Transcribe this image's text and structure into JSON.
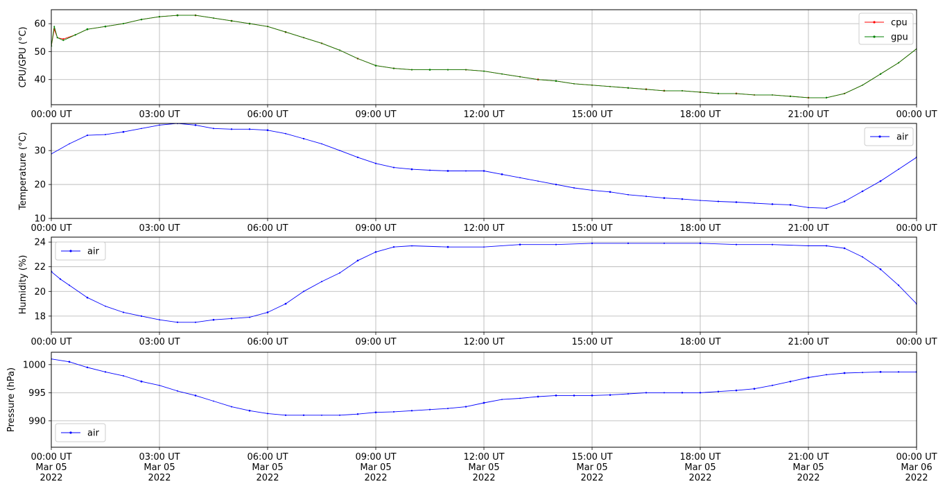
{
  "chart_data": [
    {
      "type": "line",
      "ylabel": "CPU/GPU (°C)",
      "xlim": [
        "2022-03-05T00:00Z",
        "2022-03-06T00:00Z"
      ],
      "ylim": [
        31,
        65
      ],
      "yticks": [
        40,
        50,
        60
      ],
      "xticks": [
        "00:00 UT",
        "03:00 UT",
        "06:00 UT",
        "09:00 UT",
        "12:00 UT",
        "15:00 UT",
        "18:00 UT",
        "21:00 UT",
        "00:00 UT"
      ],
      "grid": true,
      "legend": "top-right",
      "series": [
        {
          "name": "cpu",
          "color": "#ff0000",
          "x": [
            "00:00",
            "00:05",
            "00:10",
            "00:20",
            "00:40",
            "01:00",
            "01:30",
            "02:00",
            "02:30",
            "03:00",
            "03:30",
            "04:00",
            "04:30",
            "05:00",
            "05:30",
            "06:00",
            "06:30",
            "07:00",
            "07:30",
            "08:00",
            "08:30",
            "09:00",
            "09:30",
            "10:00",
            "10:30",
            "11:00",
            "11:30",
            "12:00",
            "12:30",
            "13:00",
            "13:30",
            "14:00",
            "14:30",
            "15:00",
            "15:30",
            "16:00",
            "16:30",
            "17:00",
            "17:30",
            "18:00",
            "18:30",
            "19:00",
            "19:30",
            "20:00",
            "20:30",
            "21:00",
            "21:30",
            "22:00",
            "22:30",
            "23:00",
            "23:30",
            "24:00"
          ],
          "y": [
            52,
            58,
            55,
            54.5,
            56,
            58,
            59,
            60,
            61.5,
            62.5,
            63,
            63,
            62,
            61,
            60,
            59,
            57,
            55,
            53,
            50.5,
            47.5,
            45,
            44,
            43.5,
            43.5,
            43.5,
            43.5,
            43,
            42,
            41,
            40,
            39.5,
            38.5,
            38,
            37.5,
            37,
            36.5,
            36,
            36,
            35.5,
            35,
            35,
            34.5,
            34.5,
            34,
            33.5,
            33.5,
            35,
            38,
            42,
            46,
            51
          ]
        },
        {
          "name": "gpu",
          "color": "#008000",
          "x": [
            "00:00",
            "00:05",
            "00:10",
            "00:20",
            "00:40",
            "01:00",
            "01:30",
            "02:00",
            "02:30",
            "03:00",
            "03:30",
            "04:00",
            "04:30",
            "05:00",
            "05:30",
            "06:00",
            "06:30",
            "07:00",
            "07:30",
            "08:00",
            "08:30",
            "09:00",
            "09:30",
            "10:00",
            "10:30",
            "11:00",
            "11:30",
            "12:00",
            "12:30",
            "13:00",
            "13:30",
            "14:00",
            "14:30",
            "15:00",
            "15:30",
            "16:00",
            "16:30",
            "17:00",
            "17:30",
            "18:00",
            "18:30",
            "19:00",
            "19:30",
            "20:00",
            "20:30",
            "21:00",
            "21:30",
            "22:00",
            "22:30",
            "23:00",
            "23:30",
            "24:00"
          ],
          "y": [
            52,
            59,
            55,
            54,
            56,
            58,
            59,
            60,
            61.5,
            62.5,
            63,
            63,
            62,
            61,
            60,
            59,
            57,
            55,
            53,
            50.5,
            47.5,
            45,
            44,
            43.5,
            43.5,
            43.5,
            43.5,
            43,
            42,
            41,
            40,
            39.5,
            38.5,
            38,
            37.5,
            37,
            36.5,
            36,
            36,
            35.5,
            35,
            35,
            34.5,
            34.5,
            34,
            33.5,
            33.5,
            35,
            38,
            42,
            46,
            51
          ]
        }
      ]
    },
    {
      "type": "line",
      "ylabel": "Temperature (°C)",
      "xlim": [
        "2022-03-05T00:00Z",
        "2022-03-06T00:00Z"
      ],
      "ylim": [
        10,
        38
      ],
      "yticks": [
        10,
        20,
        30
      ],
      "xticks": [
        "00:00 UT",
        "03:00 UT",
        "06:00 UT",
        "09:00 UT",
        "12:00 UT",
        "15:00 UT",
        "18:00 UT",
        "21:00 UT",
        "00:00 UT"
      ],
      "grid": true,
      "legend": "top-right",
      "series": [
        {
          "name": "air",
          "color": "#0000ff",
          "x": [
            "00:00",
            "00:30",
            "01:00",
            "01:30",
            "02:00",
            "02:30",
            "03:00",
            "03:30",
            "04:00",
            "04:30",
            "05:00",
            "05:30",
            "06:00",
            "06:30",
            "07:00",
            "07:30",
            "08:00",
            "08:30",
            "09:00",
            "09:30",
            "10:00",
            "10:30",
            "11:00",
            "11:30",
            "12:00",
            "12:30",
            "13:00",
            "13:30",
            "14:00",
            "14:30",
            "15:00",
            "15:30",
            "16:00",
            "16:30",
            "17:00",
            "17:30",
            "18:00",
            "18:30",
            "19:00",
            "19:30",
            "20:00",
            "20:30",
            "21:00",
            "21:30",
            "22:00",
            "22:30",
            "23:00",
            "23:30",
            "24:00"
          ],
          "y": [
            29,
            32,
            34.5,
            34.7,
            35.5,
            36.5,
            37.5,
            38,
            37.5,
            36.5,
            36.3,
            36.3,
            36,
            35,
            33.5,
            32,
            30,
            28,
            26.2,
            25,
            24.5,
            24.2,
            24,
            24,
            24,
            23,
            22,
            21,
            20,
            19,
            18.3,
            17.8,
            17,
            16.5,
            16,
            15.7,
            15.3,
            15,
            14.8,
            14.5,
            14.2,
            14,
            13.2,
            13,
            15,
            18,
            21,
            24.5,
            28
          ]
        }
      ]
    },
    {
      "type": "line",
      "ylabel": "Humidity (%)",
      "xlim": [
        "2022-03-05T00:00Z",
        "2022-03-06T00:00Z"
      ],
      "ylim": [
        16.7,
        24.4
      ],
      "yticks": [
        18,
        20,
        22,
        24
      ],
      "xticks": [
        "00:00 UT",
        "03:00 UT",
        "06:00 UT",
        "09:00 UT",
        "12:00 UT",
        "15:00 UT",
        "18:00 UT",
        "21:00 UT",
        "00:00 UT"
      ],
      "grid": true,
      "legend": "top-left",
      "series": [
        {
          "name": "air",
          "color": "#0000ff",
          "x": [
            "00:00",
            "00:15",
            "00:30",
            "01:00",
            "01:30",
            "02:00",
            "02:30",
            "03:00",
            "03:30",
            "04:00",
            "04:30",
            "05:00",
            "05:30",
            "06:00",
            "06:30",
            "07:00",
            "07:30",
            "08:00",
            "08:30",
            "09:00",
            "09:30",
            "10:00",
            "11:00",
            "12:00",
            "13:00",
            "14:00",
            "15:00",
            "16:00",
            "17:00",
            "18:00",
            "19:00",
            "20:00",
            "21:00",
            "21:30",
            "22:00",
            "22:30",
            "23:00",
            "23:30",
            "24:00"
          ],
          "y": [
            21.6,
            21,
            20.5,
            19.5,
            18.8,
            18.3,
            18,
            17.7,
            17.5,
            17.5,
            17.7,
            17.8,
            17.9,
            18.3,
            19,
            20,
            20.8,
            21.5,
            22.5,
            23.2,
            23.6,
            23.7,
            23.6,
            23.6,
            23.8,
            23.8,
            23.9,
            23.9,
            23.9,
            23.9,
            23.8,
            23.8,
            23.7,
            23.7,
            23.5,
            22.8,
            21.8,
            20.5,
            19
          ]
        }
      ]
    },
    {
      "type": "line",
      "ylabel": "Pressure (hPa)",
      "xlim": [
        "2022-03-05T00:00Z",
        "2022-03-06T00:00Z"
      ],
      "ylim": [
        985.3,
        1002.2
      ],
      "yticks": [
        990,
        995,
        1000
      ],
      "xticks": [
        "00:00 UT\nMar 05\n2022",
        "03:00 UT\nMar 05\n2022",
        "06:00 UT\nMar 05\n2022",
        "09:00 UT\nMar 05\n2022",
        "12:00 UT\nMar 05\n2022",
        "15:00 UT\nMar 05\n2022",
        "18:00 UT\nMar 05\n2022",
        "21:00 UT\nMar 05\n2022",
        "00:00 UT\nMar 06\n2022"
      ],
      "grid": true,
      "legend": "bottom-left",
      "series": [
        {
          "name": "air",
          "color": "#0000ff",
          "x": [
            "00:00",
            "00:30",
            "01:00",
            "01:30",
            "02:00",
            "02:30",
            "03:00",
            "03:30",
            "04:00",
            "04:30",
            "05:00",
            "05:30",
            "06:00",
            "06:30",
            "07:00",
            "07:30",
            "08:00",
            "08:30",
            "09:00",
            "09:30",
            "10:00",
            "10:30",
            "11:00",
            "11:30",
            "12:00",
            "12:30",
            "13:00",
            "13:30",
            "14:00",
            "14:30",
            "15:00",
            "15:30",
            "16:00",
            "16:30",
            "17:00",
            "17:30",
            "18:00",
            "18:30",
            "19:00",
            "19:30",
            "20:00",
            "20:30",
            "21:00",
            "21:30",
            "22:00",
            "22:30",
            "23:00",
            "23:30",
            "24:00"
          ],
          "y": [
            1001,
            1000.5,
            999.5,
            998.7,
            998,
            997,
            996.3,
            995.3,
            994.5,
            993.5,
            992.5,
            991.8,
            991.3,
            991,
            991,
            991,
            991,
            991.2,
            991.5,
            991.6,
            991.8,
            992,
            992.2,
            992.5,
            993.2,
            993.8,
            994,
            994.3,
            994.5,
            994.5,
            994.5,
            994.6,
            994.8,
            995,
            995,
            995,
            995,
            995.2,
            995.4,
            995.7,
            996.3,
            997,
            997.7,
            998.2,
            998.5,
            998.6,
            998.7,
            998.7,
            998.7
          ]
        }
      ]
    }
  ]
}
